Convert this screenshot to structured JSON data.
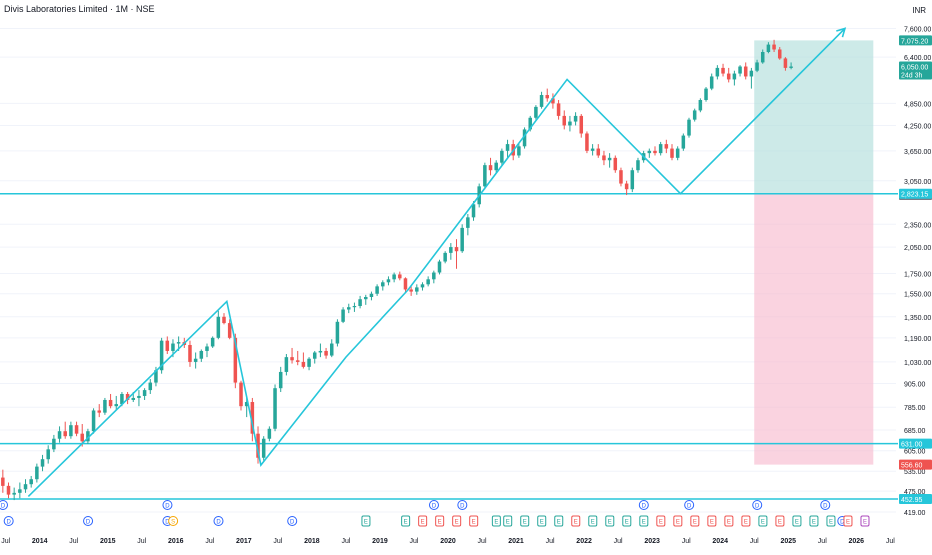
{
  "header": {
    "title": "Divis Laboratories Limited · 1M · NSE",
    "currency": "INR"
  },
  "colors": {
    "up": "#26a69a",
    "down": "#ef5350",
    "trend": "#26c6da",
    "profit_zone": "#b2dfdb",
    "loss_zone": "#f8bbd0",
    "axis_text": "#131722"
  },
  "chart_data": {
    "type": "candlestick",
    "scale": "log",
    "ylim": [
      419,
      7900
    ],
    "xlim": [
      "2013-06",
      "2026-08"
    ],
    "price_ticks": [
      "7,600.00",
      "6,400.00",
      "4,850.00",
      "4,250.00",
      "3,650.00",
      "3,050.00",
      "2,350.00",
      "2,050.00",
      "1,750.00",
      "1,550.00",
      "1,350.00",
      "1,190.00",
      "1,030.00",
      "905.00",
      "785.00",
      "685.00",
      "605.00",
      "535.00",
      "475.00",
      "419.00"
    ],
    "price_tick_values": [
      7600,
      6400,
      4850,
      4250,
      3650,
      3050,
      2350,
      2050,
      1750,
      1550,
      1350,
      1190,
      1030,
      905,
      785,
      685,
      605,
      535,
      475,
      419
    ],
    "time_ticks": [
      {
        "label": "Jul",
        "t": "2013-07"
      },
      {
        "label": "2014",
        "t": "2014-01"
      },
      {
        "label": "Jul",
        "t": "2014-07"
      },
      {
        "label": "2015",
        "t": "2015-01"
      },
      {
        "label": "Jul",
        "t": "2015-07"
      },
      {
        "label": "2016",
        "t": "2016-01"
      },
      {
        "label": "Jul",
        "t": "2016-07"
      },
      {
        "label": "2017",
        "t": "2017-01"
      },
      {
        "label": "Jul",
        "t": "2017-07"
      },
      {
        "label": "2018",
        "t": "2018-01"
      },
      {
        "label": "Jul",
        "t": "2018-07"
      },
      {
        "label": "2019",
        "t": "2019-01"
      },
      {
        "label": "Jul",
        "t": "2019-07"
      },
      {
        "label": "2020",
        "t": "2020-01"
      },
      {
        "label": "Jul",
        "t": "2020-07"
      },
      {
        "label": "2021",
        "t": "2021-01"
      },
      {
        "label": "Jul",
        "t": "2021-07"
      },
      {
        "label": "2022",
        "t": "2022-01"
      },
      {
        "label": "Jul",
        "t": "2022-07"
      },
      {
        "label": "2023",
        "t": "2023-01"
      },
      {
        "label": "Jul",
        "t": "2023-07"
      },
      {
        "label": "2024",
        "t": "2024-01"
      },
      {
        "label": "Jul",
        "t": "2024-07"
      },
      {
        "label": "2025",
        "t": "2025-01"
      },
      {
        "label": "Jul",
        "t": "2025-07"
      },
      {
        "label": "2026",
        "t": "2026-01"
      },
      {
        "label": "Jul",
        "t": "2026-07"
      }
    ],
    "horizontal_levels": [
      {
        "price": 2823.15,
        "label": "2,823.15",
        "color": "#26c6da"
      },
      {
        "price": 631.0,
        "label": "631.00",
        "color": "#26c6da"
      },
      {
        "price": 452.95,
        "label": "452.95",
        "color": "#26c6da"
      }
    ],
    "price_badges": [
      {
        "price": 7075.2,
        "label": "7,075.20",
        "color": "#26a69a"
      },
      {
        "price": 6050.0,
        "label": "6,050.00",
        "color": "#26a69a",
        "sub": "24d 3h"
      },
      {
        "price": 2800.15,
        "label": "2,800.15",
        "color": "#787b86"
      },
      {
        "price": 556.6,
        "label": "556.60",
        "color": "#ef5350"
      }
    ],
    "position_tool": {
      "start": "2024-07",
      "end": "2026-04",
      "entry": 2823.15,
      "target": 7075.2,
      "stop": 556.6
    },
    "trend_path": [
      {
        "t": "2013-11",
        "p": 460
      },
      {
        "t": "2016-10",
        "p": 1480
      },
      {
        "t": "2017-04",
        "p": 555
      },
      {
        "t": "2018-07",
        "p": 1060
      },
      {
        "t": "2019-06",
        "p": 1590
      },
      {
        "t": "2021-10",
        "p": 5600
      },
      {
        "t": "2023-06",
        "p": 2823
      },
      {
        "t": "2025-11",
        "p": 7600
      }
    ],
    "candles_start": "2013-06",
    "candles": [
      [
        515,
        540,
        470,
        490
      ],
      [
        490,
        500,
        455,
        465
      ],
      [
        465,
        485,
        450,
        470
      ],
      [
        470,
        500,
        455,
        480
      ],
      [
        480,
        510,
        470,
        495
      ],
      [
        495,
        520,
        485,
        510
      ],
      [
        510,
        560,
        500,
        550
      ],
      [
        550,
        590,
        535,
        575
      ],
      [
        575,
        625,
        560,
        610
      ],
      [
        610,
        665,
        600,
        650
      ],
      [
        650,
        700,
        635,
        680
      ],
      [
        680,
        720,
        650,
        660
      ],
      [
        660,
        720,
        650,
        705
      ],
      [
        705,
        720,
        660,
        670
      ],
      [
        670,
        710,
        620,
        640
      ],
      [
        640,
        690,
        630,
        680
      ],
      [
        680,
        780,
        670,
        770
      ],
      [
        770,
        800,
        740,
        760
      ],
      [
        760,
        830,
        750,
        820
      ],
      [
        820,
        850,
        780,
        790
      ],
      [
        790,
        840,
        770,
        800
      ],
      [
        800,
        860,
        790,
        850
      ],
      [
        850,
        860,
        800,
        820
      ],
      [
        820,
        860,
        810,
        830
      ],
      [
        830,
        870,
        790,
        840
      ],
      [
        840,
        880,
        820,
        870
      ],
      [
        870,
        930,
        850,
        910
      ],
      [
        910,
        1000,
        890,
        980
      ],
      [
        980,
        1190,
        960,
        1170
      ],
      [
        1170,
        1200,
        1080,
        1100
      ],
      [
        1100,
        1180,
        1060,
        1150
      ],
      [
        1150,
        1200,
        1100,
        1160
      ],
      [
        1160,
        1190,
        1120,
        1140
      ],
      [
        1140,
        1170,
        1000,
        1030
      ],
      [
        1030,
        1090,
        990,
        1050
      ],
      [
        1050,
        1110,
        1030,
        1100
      ],
      [
        1100,
        1150,
        1060,
        1130
      ],
      [
        1130,
        1200,
        1120,
        1190
      ],
      [
        1190,
        1400,
        1180,
        1350
      ],
      [
        1350,
        1380,
        1290,
        1300
      ],
      [
        1300,
        1330,
        1180,
        1190
      ],
      [
        1190,
        1220,
        880,
        910
      ],
      [
        910,
        920,
        770,
        790
      ],
      [
        790,
        830,
        740,
        810
      ],
      [
        810,
        830,
        640,
        670
      ],
      [
        670,
        700,
        560,
        580
      ],
      [
        580,
        660,
        570,
        650
      ],
      [
        650,
        700,
        640,
        690
      ],
      [
        690,
        900,
        680,
        880
      ],
      [
        880,
        1000,
        860,
        970
      ],
      [
        970,
        1080,
        950,
        1060
      ],
      [
        1060,
        1120,
        1020,
        1040
      ],
      [
        1040,
        1100,
        1010,
        1030
      ],
      [
        1030,
        1090,
        990,
        1000
      ],
      [
        1000,
        1060,
        980,
        1050
      ],
      [
        1050,
        1100,
        1020,
        1090
      ],
      [
        1090,
        1150,
        1060,
        1100
      ],
      [
        1100,
        1120,
        1050,
        1070
      ],
      [
        1070,
        1180,
        1060,
        1150
      ],
      [
        1150,
        1330,
        1130,
        1310
      ],
      [
        1310,
        1430,
        1300,
        1410
      ],
      [
        1410,
        1460,
        1380,
        1430
      ],
      [
        1430,
        1470,
        1390,
        1440
      ],
      [
        1440,
        1530,
        1420,
        1500
      ],
      [
        1500,
        1540,
        1450,
        1520
      ],
      [
        1520,
        1570,
        1490,
        1550
      ],
      [
        1550,
        1640,
        1530,
        1620
      ],
      [
        1620,
        1680,
        1580,
        1660
      ],
      [
        1660,
        1720,
        1630,
        1690
      ],
      [
        1690,
        1760,
        1660,
        1740
      ],
      [
        1740,
        1770,
        1680,
        1700
      ],
      [
        1700,
        1710,
        1560,
        1590
      ],
      [
        1590,
        1620,
        1530,
        1570
      ],
      [
        1570,
        1640,
        1540,
        1610
      ],
      [
        1610,
        1660,
        1580,
        1640
      ],
      [
        1640,
        1720,
        1620,
        1690
      ],
      [
        1690,
        1780,
        1650,
        1760
      ],
      [
        1760,
        1900,
        1740,
        1880
      ],
      [
        1880,
        2000,
        1860,
        1980
      ],
      [
        1980,
        2100,
        1900,
        2050
      ],
      [
        2050,
        2150,
        1800,
        2000
      ],
      [
        2000,
        2350,
        1980,
        2300
      ],
      [
        2300,
        2500,
        2200,
        2450
      ],
      [
        2450,
        2700,
        2400,
        2650
      ],
      [
        2650,
        3000,
        2600,
        2950
      ],
      [
        2950,
        3400,
        2900,
        3350
      ],
      [
        3350,
        3500,
        3150,
        3250
      ],
      [
        3250,
        3450,
        3200,
        3400
      ],
      [
        3400,
        3700,
        3350,
        3650
      ],
      [
        3650,
        3900,
        3500,
        3800
      ],
      [
        3800,
        3900,
        3450,
        3550
      ],
      [
        3550,
        3800,
        3500,
        3750
      ],
      [
        3750,
        4200,
        3700,
        4150
      ],
      [
        4150,
        4500,
        4100,
        4450
      ],
      [
        4450,
        4800,
        4400,
        4750
      ],
      [
        4750,
        5200,
        4700,
        5100
      ],
      [
        5100,
        5300,
        4900,
        5000
      ],
      [
        5000,
        5150,
        4700,
        4850
      ],
      [
        4850,
        4950,
        4400,
        4500
      ],
      [
        4500,
        4650,
        4150,
        4250
      ],
      [
        4250,
        4500,
        4100,
        4350
      ],
      [
        4350,
        4600,
        4250,
        4500
      ],
      [
        4500,
        4550,
        3950,
        4050
      ],
      [
        4050,
        4100,
        3600,
        3650
      ],
      [
        3650,
        3800,
        3550,
        3700
      ],
      [
        3700,
        3800,
        3500,
        3550
      ],
      [
        3550,
        3650,
        3350,
        3450
      ],
      [
        3450,
        3600,
        3300,
        3500
      ],
      [
        3500,
        3550,
        3200,
        3250
      ],
      [
        3250,
        3300,
        2950,
        3000
      ],
      [
        3000,
        3050,
        2800,
        2900
      ],
      [
        2900,
        3300,
        2850,
        3250
      ],
      [
        3250,
        3500,
        3200,
        3450
      ],
      [
        3450,
        3650,
        3400,
        3600
      ],
      [
        3600,
        3700,
        3500,
        3650
      ],
      [
        3650,
        3750,
        3550,
        3600
      ],
      [
        3600,
        3850,
        3550,
        3800
      ],
      [
        3800,
        3900,
        3600,
        3700
      ],
      [
        3700,
        3800,
        3450,
        3500
      ],
      [
        3500,
        3750,
        3450,
        3700
      ],
      [
        3700,
        4050,
        3650,
        4000
      ],
      [
        4000,
        4450,
        3950,
        4400
      ],
      [
        4400,
        4700,
        4350,
        4650
      ],
      [
        4650,
        5000,
        4600,
        4950
      ],
      [
        4950,
        5350,
        4900,
        5300
      ],
      [
        5300,
        5800,
        5250,
        5700
      ],
      [
        5700,
        6100,
        5600,
        6000
      ],
      [
        6000,
        6150,
        5700,
        5800
      ],
      [
        5800,
        6000,
        5500,
        5600
      ],
      [
        5600,
        5900,
        5400,
        5800
      ],
      [
        5800,
        6100,
        5700,
        6050
      ],
      [
        6050,
        6200,
        5600,
        5700
      ],
      [
        5700,
        6000,
        5300,
        5900
      ],
      [
        5900,
        6300,
        5850,
        6200
      ],
      [
        6200,
        6700,
        6150,
        6600
      ],
      [
        6600,
        7000,
        6550,
        6900
      ],
      [
        6900,
        7100,
        6600,
        6700
      ],
      [
        6700,
        6800,
        6300,
        6350
      ],
      [
        6350,
        6400,
        5900,
        6000
      ],
      [
        6000,
        6200,
        5950,
        6050
      ]
    ],
    "events_row1": [
      {
        "t": "2013-06",
        "label": "D"
      },
      {
        "t": "2015-11",
        "label": "D"
      },
      {
        "t": "2019-10",
        "label": "D"
      },
      {
        "t": "2020-03",
        "label": "D"
      },
      {
        "t": "2022-11",
        "label": "D"
      },
      {
        "t": "2023-07",
        "label": "D"
      },
      {
        "t": "2024-07",
        "label": "D"
      },
      {
        "t": "2025-07",
        "label": "D"
      }
    ],
    "events_row2": [
      {
        "t": "2013-07",
        "label": "D",
        "kind": "div"
      },
      {
        "t": "2014-09",
        "label": "D",
        "kind": "div"
      },
      {
        "t": "2015-11",
        "label": "D",
        "kind": "div"
      },
      {
        "t": "2015-12",
        "label": "S",
        "kind": "split"
      },
      {
        "t": "2016-08",
        "label": "D",
        "kind": "div"
      },
      {
        "t": "2017-09",
        "label": "D",
        "kind": "div"
      },
      {
        "t": "2018-10",
        "label": "E",
        "kind": "up"
      },
      {
        "t": "2019-05",
        "label": "E",
        "kind": "up"
      },
      {
        "t": "2019-08",
        "label": "E",
        "kind": "down"
      },
      {
        "t": "2019-11",
        "label": "E",
        "kind": "down"
      },
      {
        "t": "2020-02",
        "label": "E",
        "kind": "down"
      },
      {
        "t": "2020-05",
        "label": "E",
        "kind": "down"
      },
      {
        "t": "2020-09",
        "label": "E",
        "kind": "up"
      },
      {
        "t": "2020-11",
        "label": "E",
        "kind": "up"
      },
      {
        "t": "2021-02",
        "label": "E",
        "kind": "up"
      },
      {
        "t": "2021-05",
        "label": "E",
        "kind": "up"
      },
      {
        "t": "2021-08",
        "label": "E",
        "kind": "up"
      },
      {
        "t": "2021-11",
        "label": "E",
        "kind": "down"
      },
      {
        "t": "2022-02",
        "label": "E",
        "kind": "up"
      },
      {
        "t": "2022-05",
        "label": "E",
        "kind": "up"
      },
      {
        "t": "2022-08",
        "label": "E",
        "kind": "up"
      },
      {
        "t": "2022-11",
        "label": "E",
        "kind": "up"
      },
      {
        "t": "2023-02",
        "label": "E",
        "kind": "down"
      },
      {
        "t": "2023-05",
        "label": "E",
        "kind": "down"
      },
      {
        "t": "2023-08",
        "label": "E",
        "kind": "down"
      },
      {
        "t": "2023-11",
        "label": "E",
        "kind": "down"
      },
      {
        "t": "2024-02",
        "label": "E",
        "kind": "down"
      },
      {
        "t": "2024-05",
        "label": "E",
        "kind": "down"
      },
      {
        "t": "2024-08",
        "label": "E",
        "kind": "up"
      },
      {
        "t": "2024-11",
        "label": "E",
        "kind": "down"
      },
      {
        "t": "2025-02",
        "label": "E",
        "kind": "up"
      },
      {
        "t": "2025-05",
        "label": "E",
        "kind": "up"
      },
      {
        "t": "2025-08",
        "label": "E",
        "kind": "up"
      },
      {
        "t": "2025-10",
        "label": "D",
        "kind": "div"
      },
      {
        "t": "2025-11",
        "label": "E",
        "kind": "down"
      },
      {
        "t": "2026-02",
        "label": "E",
        "kind": "future"
      }
    ]
  }
}
